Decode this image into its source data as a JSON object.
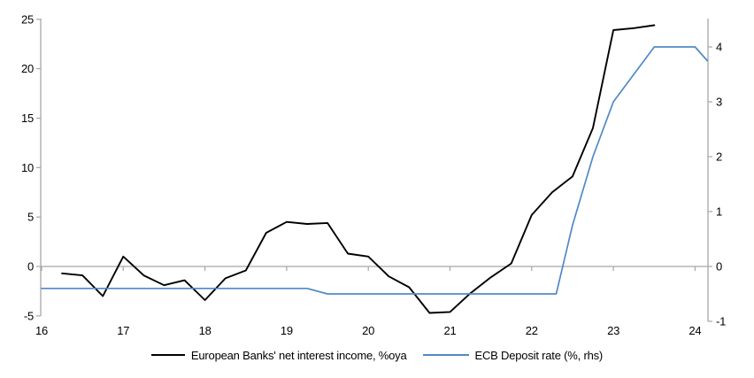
{
  "chart_data": {
    "type": "line",
    "title": "",
    "legend_position": "bottom",
    "grid": false,
    "axis_color": "#a6a6a6",
    "x_axis": {
      "ticks": [
        16,
        17,
        18,
        19,
        20,
        21,
        22,
        23,
        24
      ],
      "range": [
        16,
        24.16
      ]
    },
    "left_axis": {
      "ticks": [
        -5,
        0,
        5,
        10,
        15,
        20,
        25
      ],
      "range": [
        -5,
        25
      ]
    },
    "right_axis": {
      "ticks": [
        -1,
        0,
        1,
        2,
        3,
        4
      ],
      "range": [
        -1,
        4
      ]
    },
    "zero_line": 0,
    "series": [
      {
        "name": "European Banks' net interest income, %oya",
        "axis": "left",
        "color": "#000000",
        "points": [
          [
            16.25,
            -0.7
          ],
          [
            16.5,
            -0.9
          ],
          [
            16.75,
            -3.0
          ],
          [
            17.0,
            1.0
          ],
          [
            17.25,
            -0.9
          ],
          [
            17.5,
            -1.9
          ],
          [
            17.75,
            -1.4
          ],
          [
            18.0,
            -3.4
          ],
          [
            18.25,
            -1.2
          ],
          [
            18.5,
            -0.4
          ],
          [
            18.75,
            3.4
          ],
          [
            19.0,
            4.5
          ],
          [
            19.25,
            4.3
          ],
          [
            19.5,
            4.4
          ],
          [
            19.75,
            1.3
          ],
          [
            20.0,
            1.0
          ],
          [
            20.25,
            -1.0
          ],
          [
            20.5,
            -2.1
          ],
          [
            20.75,
            -4.7
          ],
          [
            21.0,
            -4.6
          ],
          [
            21.25,
            -2.7
          ],
          [
            21.5,
            -1.1
          ],
          [
            21.75,
            0.3
          ],
          [
            22.0,
            5.2
          ],
          [
            22.25,
            7.5
          ],
          [
            22.5,
            9.1
          ],
          [
            22.75,
            14.0
          ],
          [
            23.0,
            23.9
          ],
          [
            23.25,
            24.1
          ],
          [
            23.5,
            24.4
          ]
        ]
      },
      {
        "name": "ECB Deposit rate (%, rhs)",
        "axis": "right",
        "color": "#5089c5",
        "points": [
          [
            16.0,
            -0.4
          ],
          [
            19.25,
            -0.4
          ],
          [
            19.5,
            -0.5
          ],
          [
            22.3,
            -0.5
          ],
          [
            22.5,
            0.75
          ],
          [
            22.75,
            2.0
          ],
          [
            23.0,
            3.0
          ],
          [
            23.25,
            3.5
          ],
          [
            23.5,
            4.0
          ],
          [
            24.0,
            4.0
          ],
          [
            24.15,
            3.75
          ]
        ]
      }
    ]
  }
}
